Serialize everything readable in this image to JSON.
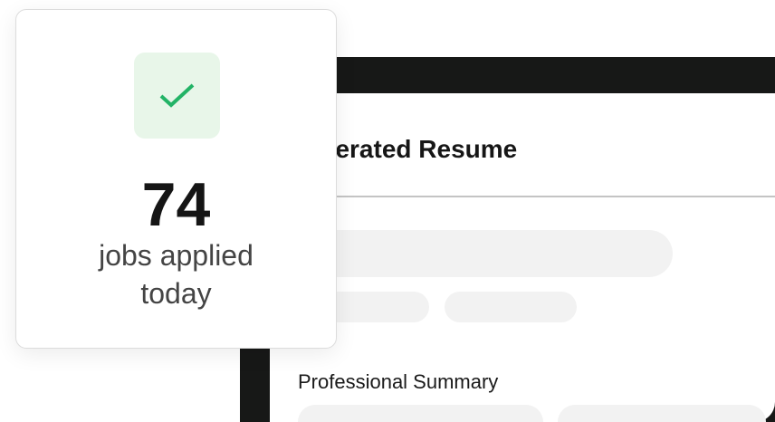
{
  "resume_window": {
    "title": "Generated Resume",
    "section_heading": "Professional Summary"
  },
  "stat_card": {
    "icon": "check-icon",
    "count": "74",
    "label_line1": "jobs applied",
    "label_line2": "today",
    "accent_color": "#22b366",
    "icon_bg_color": "#e8f6e9"
  }
}
